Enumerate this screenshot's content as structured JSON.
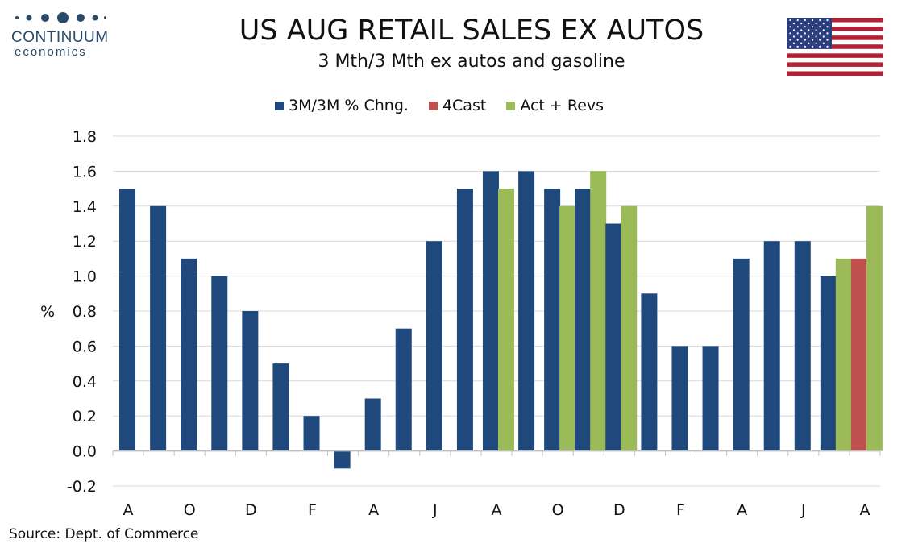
{
  "logo": {
    "word": "CONTINUUM",
    "sub": "economics"
  },
  "title": "US AUG RETAIL SALES EX AUTOS",
  "subtitle": "3 Mth/3 Mth  ex autos and gasoline",
  "source": "Source: Dept. of Commerce",
  "colors": {
    "navy": "#1f497d",
    "red": "#c0504d",
    "green": "#9bbb59",
    "grid": "#d9d9d9"
  },
  "chart_data": {
    "type": "bar",
    "ylabel": "%",
    "ylim": [
      -0.2,
      1.8
    ],
    "yticks": [
      "-0.2",
      "0.0",
      "0.2",
      "0.4",
      "0.6",
      "0.8",
      "1.0",
      "1.2",
      "1.4",
      "1.6",
      "1.8"
    ],
    "grid": true,
    "legend_position": "top",
    "xtick_labels": [
      "A",
      "O",
      "D",
      "F",
      "A",
      "J",
      "A",
      "O",
      "D",
      "F",
      "A",
      "J",
      "A"
    ],
    "series": [
      {
        "name": "3M/3M % Chng.",
        "color": "#1f497d",
        "values": [
          1.5,
          1.4,
          1.1,
          1.0,
          0.8,
          0.5,
          0.2,
          -0.1,
          0.3,
          0.7,
          1.2,
          1.5,
          1.6,
          1.6,
          1.5,
          1.5,
          1.3,
          0.9,
          0.6,
          0.6,
          1.1,
          1.2,
          1.2,
          1.0,
          null
        ]
      },
      {
        "name": "4Cast",
        "color": "#c0504d",
        "values": [
          null,
          null,
          null,
          null,
          null,
          null,
          null,
          null,
          null,
          null,
          null,
          null,
          null,
          null,
          null,
          null,
          null,
          null,
          null,
          null,
          null,
          null,
          null,
          null,
          1.1
        ]
      },
      {
        "name": "Act + Revs",
        "color": "#9bbb59",
        "values": [
          null,
          null,
          null,
          null,
          null,
          null,
          null,
          null,
          null,
          null,
          null,
          null,
          1.5,
          null,
          1.4,
          1.6,
          1.4,
          null,
          null,
          null,
          null,
          null,
          null,
          1.1,
          1.4
        ]
      }
    ]
  }
}
